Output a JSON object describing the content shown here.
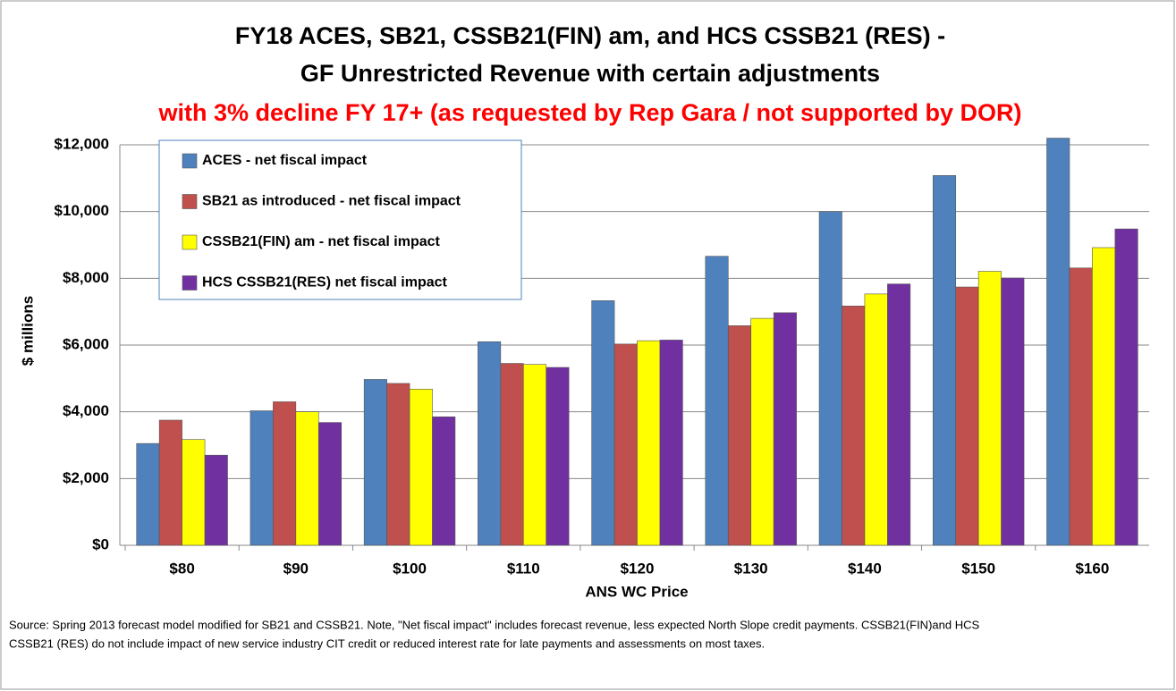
{
  "chart_data": {
    "type": "bar",
    "title": [
      "FY18 ACES, SB21, CSSB21(FIN) am, and HCS CSSB21 (RES) -",
      "GF Unrestricted Revenue with certain adjustments"
    ],
    "subtitle": "with 3% decline FY 17+ (as requested by Rep Gara / not supported by DOR)",
    "x_label": "ANS WC Price",
    "y_label": "$ millions",
    "categories": [
      "$80",
      "$90",
      "$100",
      "$110",
      "$120",
      "$130",
      "$140",
      "$150",
      "$160"
    ],
    "series": [
      {
        "name": "ACES - net fiscal impact",
        "color": "#4f81bd",
        "values": [
          3050,
          4030,
          4970,
          6100,
          7330,
          8660,
          10000,
          11080,
          12200
        ]
      },
      {
        "name": "SB21 as introduced - net fiscal impact",
        "color": "#c0504d",
        "values": [
          3750,
          4300,
          4850,
          5450,
          6030,
          6580,
          7170,
          7740,
          8310
        ]
      },
      {
        "name": "CSSB21(FIN) am - net fiscal impact",
        "color": "#ffff00",
        "values": [
          3170,
          4000,
          4680,
          5420,
          6130,
          6800,
          7530,
          8210,
          8920
        ]
      },
      {
        "name": "HCS CSSB21(RES) net fiscal impact",
        "color": "#7030a0",
        "values": [
          2700,
          3680,
          3850,
          5330,
          6150,
          6970,
          7830,
          8010,
          9480
        ]
      }
    ],
    "ylim": [
      0,
      12000
    ],
    "yticks": [
      {
        "value": 0,
        "label": "$0"
      },
      {
        "value": 2000,
        "label": "$2,000"
      },
      {
        "value": 4000,
        "label": "$4,000"
      },
      {
        "value": 6000,
        "label": "$6,000"
      },
      {
        "value": 8000,
        "label": "$8,000"
      },
      {
        "value": 10000,
        "label": "$10,000"
      },
      {
        "value": 12000,
        "label": "$12,000"
      }
    ],
    "grid": true,
    "legend": "top-left",
    "source": [
      "Source: Spring 2013 forecast model modified for SB21 and CSSB21. Note, \"Net fiscal impact\" includes forecast revenue, less expected North Slope credit payments. CSSB21(FIN)and HCS",
      "CSSB21 (RES) do not include impact of new service industry CIT credit or reduced interest rate for late payments and assessments on most taxes."
    ]
  }
}
